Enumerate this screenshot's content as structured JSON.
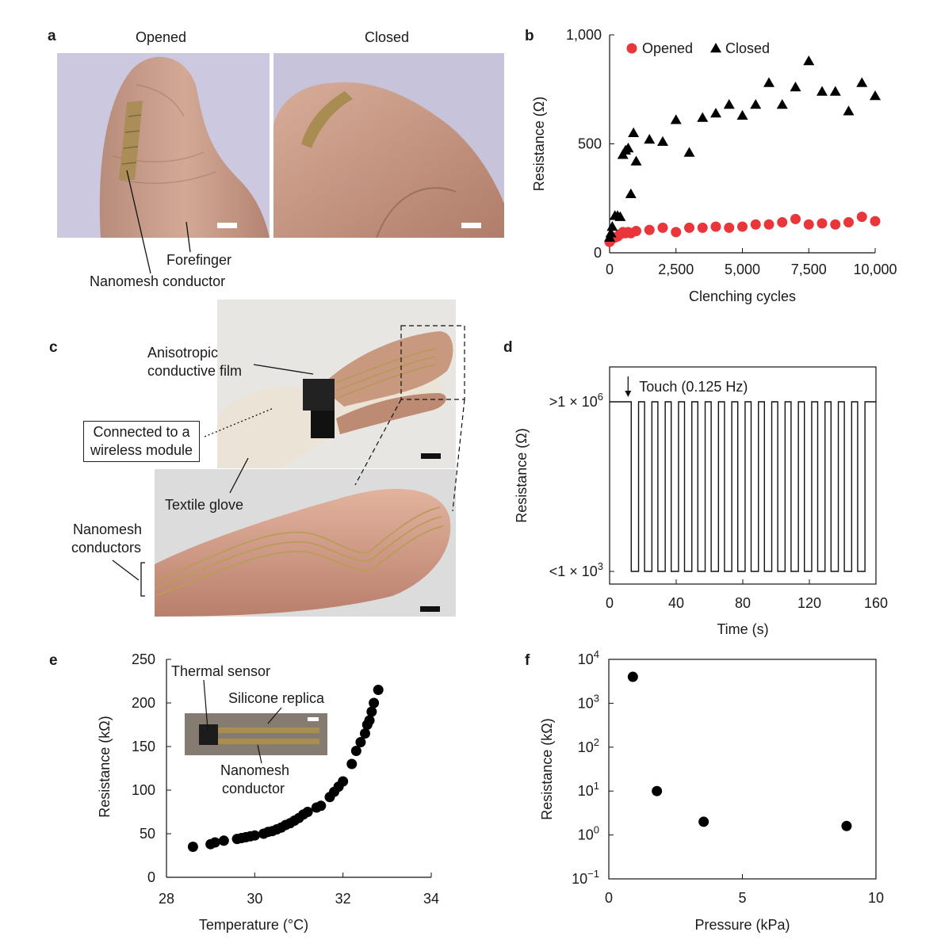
{
  "panels": {
    "a": {
      "letter": "a",
      "opened_label": "Opened",
      "closed_label": "Closed",
      "annotation_forefinger": "Forefinger",
      "annotation_conductor": "Nanomesh conductor"
    },
    "b": {
      "letter": "b"
    },
    "c": {
      "letter": "c",
      "acf_line1": "Anisotropic",
      "acf_line2": "conductive film",
      "box_line1": "Connected to a",
      "box_line2": "wireless module",
      "glove": "Textile glove",
      "conductors_line1": "Nanomesh",
      "conductors_line2": "conductors"
    },
    "d": {
      "letter": "d"
    },
    "e": {
      "letter": "e",
      "inset_thermal": "Thermal sensor",
      "inset_silicone": "Silicone replica",
      "inset_nanomesh_line1": "Nanomesh",
      "inset_nanomesh_line2": "conductor"
    },
    "f": {
      "letter": "f"
    }
  },
  "colors": {
    "opened": "#e8363a",
    "closed": "#000000",
    "skin": "#c79a86",
    "photo_bg": "#c9c6dc",
    "gold": "#b09a55"
  },
  "chart_data": [
    {
      "panel": "b",
      "type": "scatter",
      "xlabel": "Clenching cycles",
      "ylabel": "Resistance (Ω)",
      "xlim": [
        0,
        10000
      ],
      "ylim": [
        0,
        1000
      ],
      "xticks": [
        "0",
        "2,500",
        "5,000",
        "7,500",
        "10,000"
      ],
      "yticks": [
        "0",
        "500",
        "1,000"
      ],
      "legend_position": "top",
      "series": [
        {
          "name": "Opened",
          "marker": "circle",
          "x": [
            0,
            50,
            100,
            200,
            300,
            400,
            500,
            600,
            700,
            800,
            1000,
            1500,
            2000,
            2500,
            3000,
            3500,
            4000,
            4500,
            5000,
            5500,
            6000,
            6500,
            7000,
            7500,
            8000,
            8500,
            9000,
            9500,
            10000
          ],
          "y": [
            50,
            60,
            65,
            70,
            75,
            85,
            95,
            90,
            95,
            90,
            100,
            105,
            115,
            95,
            115,
            115,
            120,
            115,
            120,
            130,
            130,
            140,
            155,
            130,
            135,
            130,
            140,
            165,
            145
          ]
        },
        {
          "name": "Closed",
          "marker": "triangle",
          "x": [
            0,
            50,
            100,
            200,
            300,
            400,
            500,
            600,
            700,
            800,
            900,
            1000,
            1500,
            2000,
            2500,
            3000,
            3500,
            4000,
            4500,
            5000,
            5500,
            6000,
            6500,
            7000,
            7500,
            8000,
            8500,
            9000,
            9500,
            10000
          ],
          "y": [
            70,
            90,
            120,
            170,
            170,
            165,
            450,
            470,
            480,
            270,
            550,
            420,
            520,
            510,
            610,
            460,
            620,
            640,
            680,
            630,
            680,
            780,
            680,
            760,
            880,
            740,
            740,
            650,
            780,
            720
          ]
        }
      ]
    },
    {
      "panel": "d",
      "type": "line",
      "xlabel": "Time (s)",
      "ylabel": "Resistance (Ω)",
      "xlim": [
        0,
        160
      ],
      "xticks": [
        "0",
        "40",
        "80",
        "120",
        "160"
      ],
      "ylevels": [
        ">1 × 10^6",
        "<1 × 10^3"
      ],
      "annotation": "Touch (0.125 Hz)",
      "pulse_period_s": 8,
      "first_touch_s": 13,
      "last_touch_s": 152
    },
    {
      "panel": "e",
      "type": "scatter",
      "xlabel": "Temperature (°C)",
      "ylabel": "Resistance (kΩ)",
      "xlim": [
        28,
        34
      ],
      "ylim": [
        0,
        250
      ],
      "xticks": [
        "28",
        "30",
        "32",
        "34"
      ],
      "yticks": [
        "0",
        "50",
        "100",
        "150",
        "200",
        "250"
      ],
      "series": [
        {
          "marker": "circle",
          "x": [
            28.6,
            29.0,
            29.1,
            29.3,
            29.6,
            29.7,
            29.8,
            29.9,
            30.0,
            30.2,
            30.3,
            30.4,
            30.5,
            30.6,
            30.7,
            30.8,
            30.9,
            31.0,
            31.1,
            31.2,
            31.4,
            31.5,
            31.7,
            31.8,
            31.9,
            32.0,
            32.2,
            32.3,
            32.4,
            32.5,
            32.55,
            32.6,
            32.65,
            32.7,
            32.8
          ],
          "y": [
            35,
            38,
            40,
            42,
            44,
            45,
            46,
            47,
            48,
            50,
            52,
            53,
            55,
            57,
            60,
            62,
            65,
            68,
            72,
            75,
            80,
            82,
            92,
            98,
            104,
            110,
            130,
            145,
            155,
            165,
            175,
            180,
            190,
            200,
            215
          ]
        }
      ]
    },
    {
      "panel": "f",
      "type": "scatter",
      "xlabel": "Pressure (kPa)",
      "ylabel": "Resistance (kΩ)",
      "yscale": "log",
      "xlim": [
        0,
        10
      ],
      "ylim": [
        0.1,
        10000
      ],
      "xticks": [
        "0",
        "5",
        "10"
      ],
      "yticks": [
        "10^-1",
        "10^0",
        "10^1",
        "10^2",
        "10^3",
        "10^4"
      ],
      "series": [
        {
          "marker": "circle",
          "x": [
            0.9,
            1.8,
            3.55,
            8.9
          ],
          "y": [
            4000,
            10,
            2,
            1.6
          ]
        }
      ]
    }
  ]
}
